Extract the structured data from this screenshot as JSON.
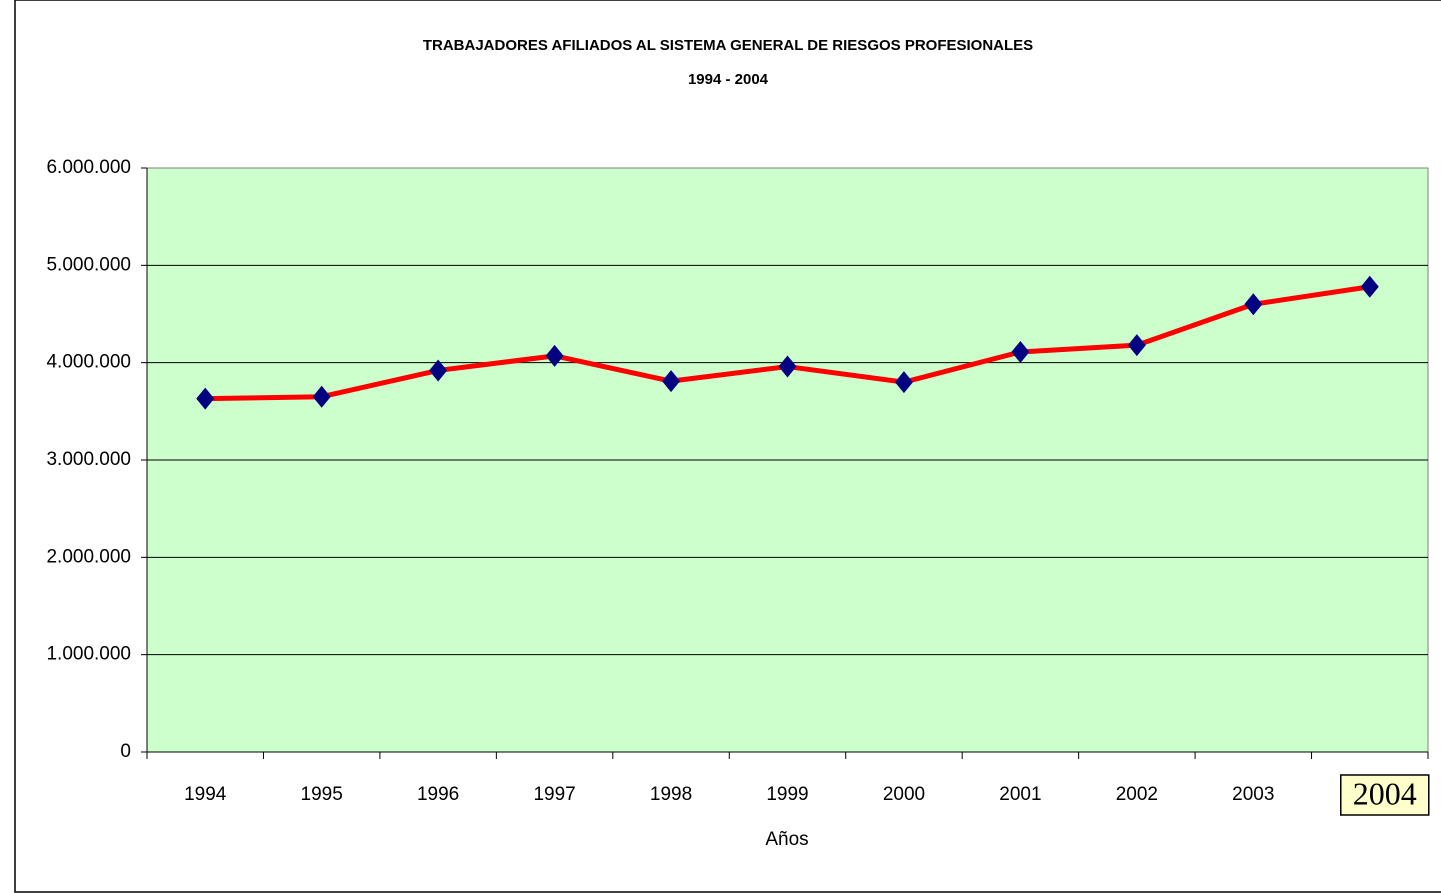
{
  "chart_data": {
    "type": "line",
    "title": "TRABAJADORES AFILIADOS AL SISTEMA GENERAL DE RIESGOS PROFESIONALES",
    "subtitle": "1994 - 2004",
    "x_label": "Años",
    "categories": [
      "1994",
      "1995",
      "1996",
      "1997",
      "1998",
      "1999",
      "2000",
      "2001",
      "2002",
      "2003",
      "2004"
    ],
    "series": [
      {
        "color": "#ff0000",
        "marker_color": "#000080",
        "values": [
          3630000,
          3650000,
          3920000,
          4070000,
          3810000,
          3960000,
          3800000,
          4110000,
          4180000,
          4600000,
          4780000
        ]
      }
    ],
    "ylim": [
      0,
      6000000
    ],
    "yticks": [
      0,
      {
        "value": 1000000,
        "label": "1.000.000"
      },
      {
        "value": 2000000,
        "label": "2.000.000"
      },
      {
        "value": 3000000,
        "label": "3.000.000"
      },
      {
        "value": 4000000,
        "label": "4.000.000"
      },
      {
        "value": 5000000,
        "label": "5.000.000"
      },
      {
        "value": 6000000,
        "label": "6.000.000"
      }
    ],
    "grid": true,
    "plot_background": "#ccffcc"
  }
}
